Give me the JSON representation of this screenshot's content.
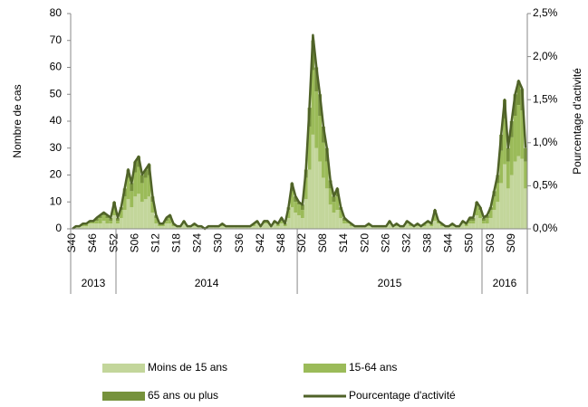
{
  "chart_data": {
    "type": "stacked-bar-line",
    "y_label": "Nombre de cas",
    "y2_label": "Pourcentage d'activité",
    "categories": [
      "S40",
      null,
      null,
      null,
      null,
      null,
      "S46",
      null,
      null,
      null,
      null,
      null,
      "S52",
      null,
      null,
      null,
      null,
      null,
      "S06",
      null,
      null,
      null,
      null,
      null,
      "S12",
      null,
      null,
      null,
      null,
      null,
      "S18",
      null,
      null,
      null,
      null,
      null,
      "S24",
      null,
      null,
      null,
      null,
      null,
      "S30",
      null,
      null,
      null,
      null,
      null,
      "S36",
      null,
      null,
      null,
      null,
      null,
      "S42",
      null,
      null,
      null,
      null,
      null,
      "S48",
      null,
      null,
      null,
      null,
      null,
      "S02",
      null,
      null,
      null,
      null,
      null,
      "S08",
      null,
      null,
      null,
      null,
      null,
      "S14",
      null,
      null,
      null,
      null,
      null,
      "S20",
      null,
      null,
      null,
      null,
      null,
      "S26",
      null,
      null,
      null,
      null,
      null,
      "S32",
      null,
      null,
      null,
      null,
      null,
      "S38",
      null,
      null,
      null,
      null,
      null,
      "S44",
      null,
      null,
      null,
      null,
      null,
      "S50",
      null,
      null,
      null,
      null,
      null,
      "S03",
      null,
      null,
      null,
      null,
      null,
      "S09",
      null,
      null,
      null,
      null
    ],
    "x_groups": [
      "2013",
      "2014",
      "2015",
      "2016"
    ],
    "series": [
      {
        "name": "Moins de 15 ans",
        "color": "#c3d69b",
        "values": [
          0,
          1,
          1,
          1,
          1,
          2,
          2,
          2,
          2,
          3,
          2,
          2,
          5,
          2,
          4,
          7,
          11,
          8,
          12,
          13,
          10,
          11,
          12,
          6,
          2,
          1,
          1,
          2,
          2,
          1,
          1,
          1,
          2,
          1,
          1,
          1,
          1,
          1,
          0,
          1,
          1,
          1,
          1,
          1,
          1,
          1,
          1,
          1,
          1,
          1,
          1,
          1,
          1,
          2,
          1,
          2,
          2,
          1,
          2,
          1,
          2,
          1,
          4,
          8,
          6,
          5,
          4,
          11,
          22,
          35,
          30,
          25,
          19,
          15,
          9,
          6,
          7,
          4,
          2,
          2,
          1,
          1,
          1,
          1,
          1,
          1,
          1,
          1,
          1,
          1,
          1,
          2,
          1,
          1,
          1,
          1,
          2,
          1,
          1,
          1,
          1,
          1,
          2,
          1,
          3,
          2,
          1,
          1,
          1,
          1,
          1,
          1,
          2,
          1,
          2,
          2,
          5,
          4,
          2,
          2,
          4,
          7,
          10,
          17,
          24,
          15,
          20,
          25,
          27,
          26,
          15
        ]
      },
      {
        "name": "15-64 ans",
        "color": "#9bbb59",
        "values": [
          0,
          0,
          0,
          1,
          1,
          1,
          1,
          1,
          2,
          2,
          2,
          1,
          4,
          1,
          3,
          5,
          8,
          6,
          9,
          10,
          7,
          8,
          8,
          4,
          2,
          1,
          1,
          1,
          2,
          1,
          0,
          0,
          1,
          0,
          0,
          1,
          0,
          0,
          0,
          0,
          0,
          0,
          0,
          1,
          0,
          0,
          0,
          0,
          0,
          0,
          0,
          0,
          1,
          1,
          0,
          1,
          1,
          0,
          1,
          1,
          1,
          1,
          3,
          6,
          4,
          4,
          3,
          8,
          16,
          24,
          21,
          17,
          13,
          10,
          6,
          4,
          5,
          3,
          1,
          1,
          1,
          0,
          0,
          0,
          0,
          1,
          0,
          0,
          0,
          0,
          0,
          1,
          0,
          1,
          0,
          0,
          1,
          1,
          0,
          1,
          0,
          1,
          1,
          1,
          3,
          1,
          1,
          0,
          0,
          1,
          0,
          0,
          1,
          1,
          1,
          1,
          4,
          3,
          1,
          2,
          3,
          5,
          7,
          12,
          17,
          10,
          14,
          17,
          19,
          18,
          10
        ]
      },
      {
        "name": "65 ans ou plus",
        "color": "#76923c",
        "values": [
          0,
          0,
          0,
          0,
          0,
          0,
          0,
          1,
          1,
          1,
          1,
          1,
          1,
          1,
          1,
          3,
          3,
          3,
          4,
          4,
          3,
          3,
          4,
          2,
          1,
          0,
          0,
          1,
          1,
          0,
          0,
          0,
          0,
          0,
          0,
          0,
          0,
          0,
          0,
          0,
          0,
          0,
          0,
          0,
          0,
          0,
          0,
          0,
          0,
          0,
          0,
          0,
          0,
          0,
          0,
          0,
          0,
          0,
          0,
          0,
          1,
          0,
          1,
          3,
          2,
          1,
          2,
          3,
          7,
          11,
          9,
          8,
          6,
          5,
          3,
          2,
          3,
          1,
          1,
          0,
          0,
          0,
          0,
          0,
          0,
          0,
          0,
          0,
          0,
          0,
          0,
          0,
          0,
          0,
          0,
          0,
          0,
          0,
          0,
          0,
          0,
          0,
          0,
          0,
          1,
          0,
          0,
          0,
          0,
          0,
          0,
          0,
          0,
          0,
          1,
          1,
          1,
          1,
          1,
          1,
          1,
          2,
          3,
          6,
          7,
          5,
          6,
          8,
          9,
          8,
          5
        ]
      },
      {
        "name": "Pourcentage d'activité",
        "color": "#4f6228",
        "axis": "y2",
        "values": [
          0,
          0.03,
          0.03,
          0.06,
          0.06,
          0.09,
          0.09,
          0.13,
          0.16,
          0.19,
          0.16,
          0.13,
          0.31,
          0.13,
          0.25,
          0.47,
          0.69,
          0.53,
          0.78,
          0.84,
          0.63,
          0.69,
          0.75,
          0.38,
          0.16,
          0.06,
          0.06,
          0.13,
          0.16,
          0.06,
          0.03,
          0.03,
          0.09,
          0.03,
          0.03,
          0.06,
          0.03,
          0.03,
          0,
          0.03,
          0.03,
          0.03,
          0.03,
          0.06,
          0.03,
          0.03,
          0.03,
          0.03,
          0.03,
          0.03,
          0.03,
          0.03,
          0.06,
          0.09,
          0.03,
          0.09,
          0.09,
          0.03,
          0.09,
          0.06,
          0.13,
          0.06,
          0.25,
          0.53,
          0.38,
          0.31,
          0.28,
          0.69,
          1.41,
          2.25,
          1.88,
          1.56,
          1.19,
          0.94,
          0.56,
          0.38,
          0.47,
          0.25,
          0.13,
          0.09,
          0.06,
          0.03,
          0.03,
          0.03,
          0.03,
          0.06,
          0.03,
          0.03,
          0.03,
          0.03,
          0.03,
          0.09,
          0.03,
          0.06,
          0.03,
          0.03,
          0.09,
          0.06,
          0.03,
          0.06,
          0.03,
          0.06,
          0.09,
          0.06,
          0.22,
          0.09,
          0.06,
          0.03,
          0.03,
          0.06,
          0.03,
          0.03,
          0.09,
          0.06,
          0.13,
          0.13,
          0.31,
          0.25,
          0.13,
          0.16,
          0.25,
          0.44,
          0.63,
          1.09,
          1.5,
          0.94,
          1.25,
          1.56,
          1.72,
          1.63,
          0.94
        ]
      }
    ],
    "ylim": [
      0,
      80
    ],
    "yticks": [
      0,
      10,
      20,
      30,
      40,
      50,
      60,
      70,
      80
    ],
    "y2lim": [
      0,
      2.5
    ],
    "y2ticks": [
      {
        "value": 0,
        "label": "0,0%"
      },
      {
        "value": 0.5,
        "label": "0,5%"
      },
      {
        "value": 1,
        "label": "1,0%"
      },
      {
        "value": 1.5,
        "label": "1,5%"
      },
      {
        "value": 2,
        "label": "2,0%"
      },
      {
        "value": 2.5,
        "label": "2,5%"
      }
    ],
    "legend": "bottom"
  }
}
